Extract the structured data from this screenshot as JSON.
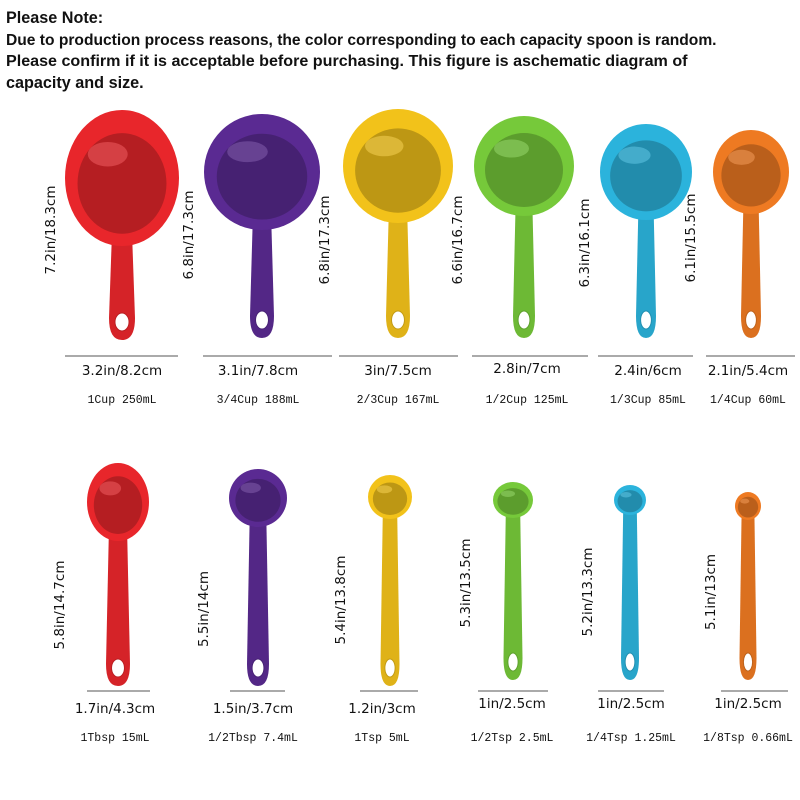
{
  "note": {
    "heading": "Please Note:",
    "line1": "Due to production process reasons, the color corresponding to each capacity spoon is random.",
    "line2": "Please confirm if it is acceptable before purchasing. This figure is aschematic diagram of",
    "line3": "capacity and size."
  },
  "colors": {
    "red": "#e8262b",
    "purple": "#5a2a92",
    "yellow": "#f2c21a",
    "green": "#76c93a",
    "blue": "#2bb3dc",
    "orange": "#ee7a22"
  },
  "cups": [
    {
      "capacity": "1Cup 250mL",
      "width": "3.2in/8.2cm",
      "length": "7.2in/18.3cm",
      "color": "red",
      "icon": "measuring-cup-icon"
    },
    {
      "capacity": "3/4Cup 188mL",
      "width": "3.1in/7.8cm",
      "length": "6.8in/17.3cm",
      "color": "purple",
      "icon": "measuring-cup-icon"
    },
    {
      "capacity": "2/3Cup 167mL",
      "width": "3in/7.5cm",
      "length": "6.8in/17.3cm",
      "color": "yellow",
      "icon": "measuring-cup-icon"
    },
    {
      "capacity": "1/2Cup 125mL",
      "width": "2.8in/7cm",
      "length": "6.6in/16.7cm",
      "color": "green",
      "icon": "measuring-cup-icon"
    },
    {
      "capacity": "1/3Cup 85mL",
      "width": "2.4in/6cm",
      "length": "6.3in/16.1cm",
      "color": "blue",
      "icon": "measuring-cup-icon"
    },
    {
      "capacity": "1/4Cup 60mL",
      "width": "2.1in/5.4cm",
      "length": "6.1in/15.5cm",
      "color": "orange",
      "icon": "measuring-cup-icon"
    }
  ],
  "spoons": [
    {
      "capacity": "1Tbsp 15mL",
      "width": "1.7in/4.3cm",
      "length": "5.8in/14.7cm",
      "color": "red",
      "icon": "measuring-spoon-icon"
    },
    {
      "capacity": "1/2Tbsp 7.4mL",
      "width": "1.5in/3.7cm",
      "length": "5.5in/14cm",
      "color": "purple",
      "icon": "measuring-spoon-icon"
    },
    {
      "capacity": "1Tsp 5mL",
      "width": "1.2in/3cm",
      "length": "5.4in/13.8cm",
      "color": "yellow",
      "icon": "measuring-spoon-icon"
    },
    {
      "capacity": "1/2Tsp 2.5mL",
      "width": "1in/2.5cm",
      "length": "5.3in/13.5cm",
      "color": "green",
      "icon": "measuring-spoon-icon"
    },
    {
      "capacity": "1/4Tsp 1.25mL",
      "width": "1in/2.5cm",
      "length": "5.2in/13.3cm",
      "color": "blue",
      "icon": "measuring-spoon-icon"
    },
    {
      "capacity": "1/8Tsp 0.66mL",
      "width": "1in/2.5cm",
      "length": "5.1in/13cm",
      "color": "orange",
      "icon": "measuring-spoon-icon"
    }
  ]
}
